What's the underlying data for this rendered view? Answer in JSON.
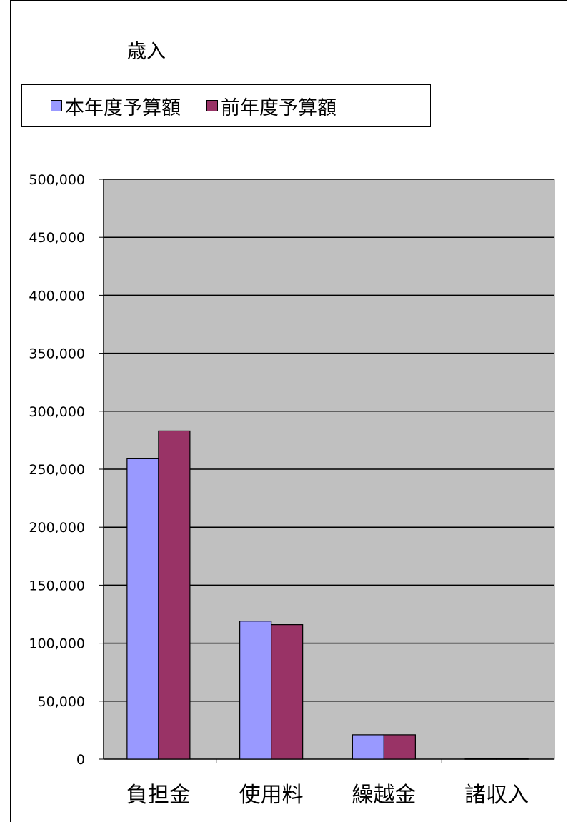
{
  "chart_data": {
    "type": "bar",
    "title": "歳入",
    "categories": [
      "負担金",
      "使用料",
      "繰越金",
      "諸収入"
    ],
    "series": [
      {
        "name": "本年度予算額",
        "values": [
          259000,
          119000,
          21000,
          500
        ],
        "color": "#9999ff"
      },
      {
        "name": "前年度予算額",
        "values": [
          283000,
          116000,
          21000,
          500
        ],
        "color": "#993366"
      }
    ],
    "ylim": [
      0,
      500000
    ],
    "yticks": [
      0,
      50000,
      100000,
      150000,
      200000,
      250000,
      300000,
      350000,
      400000,
      450000,
      500000
    ],
    "ytick_labels": [
      "0",
      "50,000",
      "100,000",
      "150,000",
      "200,000",
      "250,000",
      "300,000",
      "350,000",
      "400,000",
      "450,000",
      "500,000"
    ],
    "xlabel": "",
    "ylabel": "",
    "grid": true,
    "legend_position": "top",
    "plot_background": "#c0c0c0"
  }
}
